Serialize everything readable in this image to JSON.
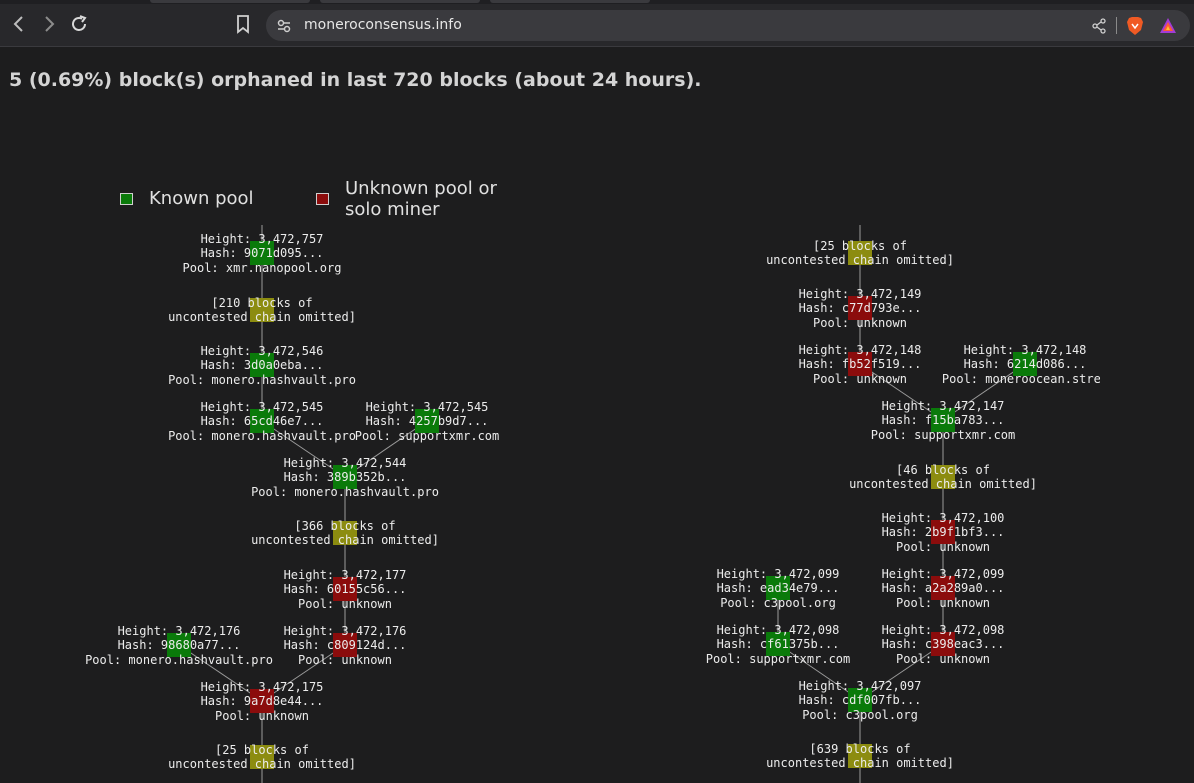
{
  "browser": {
    "url": "moneroconsensus.info"
  },
  "page": {
    "heading": "5 (0.69%) block(s) orphaned in last 720 blocks (about 24 hours)."
  },
  "legend": {
    "known_label": "Known pool",
    "unknown_label_line1": "Unknown pool or",
    "unknown_label_line2": "solo miner",
    "colors": {
      "known": "#0a7a0a",
      "unknown": "#8b0c0c",
      "omitted": "#8c8c10"
    }
  },
  "trees": {
    "left": [
      {
        "kind": "block",
        "status": "known",
        "height": "Height: 3,472,757",
        "hash": "Hash: 9071d095...",
        "pool": "Pool: xmr.nanopool.org"
      },
      {
        "kind": "omitted",
        "line1": "[210 blocks of",
        "line2": "uncontested chain omitted]"
      },
      {
        "kind": "block",
        "status": "known",
        "height": "Height: 3,472,546",
        "hash": "Hash: 3d0a0eba...",
        "pool": "Pool: monero.hashvault.pro"
      },
      {
        "kind": "block",
        "status": "known",
        "height": "Height: 3,472,545",
        "hash": "Hash: 65cd46e7...",
        "pool": "Pool: monero.hashvault.pro"
      },
      {
        "kind": "block",
        "status": "known",
        "height": "Height: 3,472,545",
        "hash": "Hash: 4257b9d7...",
        "pool": "Pool: supportxmr.com"
      },
      {
        "kind": "block",
        "status": "known",
        "height": "Height: 3,472,544",
        "hash": "Hash: 389b352b...",
        "pool": "Pool: monero.hashvault.pro"
      },
      {
        "kind": "omitted",
        "line1": "[366 blocks of",
        "line2": "uncontested chain omitted]"
      },
      {
        "kind": "block",
        "status": "unknown",
        "height": "Height: 3,472,177",
        "hash": "Hash: 60155c56...",
        "pool": "Pool: unknown"
      },
      {
        "kind": "block",
        "status": "known",
        "height": "Height: 3,472,176",
        "hash": "Hash: 98680a77...",
        "pool": "Pool: monero.hashvault.pro"
      },
      {
        "kind": "block",
        "status": "unknown",
        "height": "Height: 3,472,176",
        "hash": "Hash: c809124d...",
        "pool": "Pool: unknown"
      },
      {
        "kind": "block",
        "status": "unknown",
        "height": "Height: 3,472,175",
        "hash": "Hash: 9a7d8e44...",
        "pool": "Pool: unknown"
      },
      {
        "kind": "omitted",
        "line1": "[25 blocks of",
        "line2": "uncontested chain omitted]"
      }
    ],
    "right": [
      {
        "kind": "omitted",
        "line1": "[25 blocks of",
        "line2": "uncontested chain omitted]"
      },
      {
        "kind": "block",
        "status": "unknown",
        "height": "Height: 3,472,149",
        "hash": "Hash: c77d793e...",
        "pool": "Pool: unknown"
      },
      {
        "kind": "block",
        "status": "unknown",
        "height": "Height: 3,472,148",
        "hash": "Hash: fb52f519...",
        "pool": "Pool: unknown"
      },
      {
        "kind": "block",
        "status": "known",
        "height": "Height: 3,472,148",
        "hash": "Hash: 6214d086...",
        "pool": "Pool: moneroocean.strea"
      },
      {
        "kind": "block",
        "status": "known",
        "height": "Height: 3,472,147",
        "hash": "Hash: f15ba783...",
        "pool": "Pool: supportxmr.com"
      },
      {
        "kind": "omitted",
        "line1": "[46 blocks of",
        "line2": "uncontested chain omitted]"
      },
      {
        "kind": "block",
        "status": "unknown",
        "height": "Height: 3,472,100",
        "hash": "Hash: 2b9f1bf3...",
        "pool": "Pool: unknown"
      },
      {
        "kind": "block",
        "status": "known",
        "height": "Height: 3,472,099",
        "hash": "Hash: ead34e79...",
        "pool": "Pool: c3pool.org"
      },
      {
        "kind": "block",
        "status": "unknown",
        "height": "Height: 3,472,099",
        "hash": "Hash: a2a289a0...",
        "pool": "Pool: unknown"
      },
      {
        "kind": "block",
        "status": "known",
        "height": "Height: 3,472,098",
        "hash": "Hash: cf61375b...",
        "pool": "Pool: supportxmr.com"
      },
      {
        "kind": "block",
        "status": "unknown",
        "height": "Height: 3,472,098",
        "hash": "Hash: c398eac3...",
        "pool": "Pool: unknown"
      },
      {
        "kind": "block",
        "status": "known",
        "height": "Height: 3,472,097",
        "hash": "Hash: cdf007fb...",
        "pool": "Pool: c3pool.org"
      },
      {
        "kind": "omitted",
        "line1": "[639 blocks of",
        "line2": "uncontested chain omitted]"
      }
    ]
  }
}
